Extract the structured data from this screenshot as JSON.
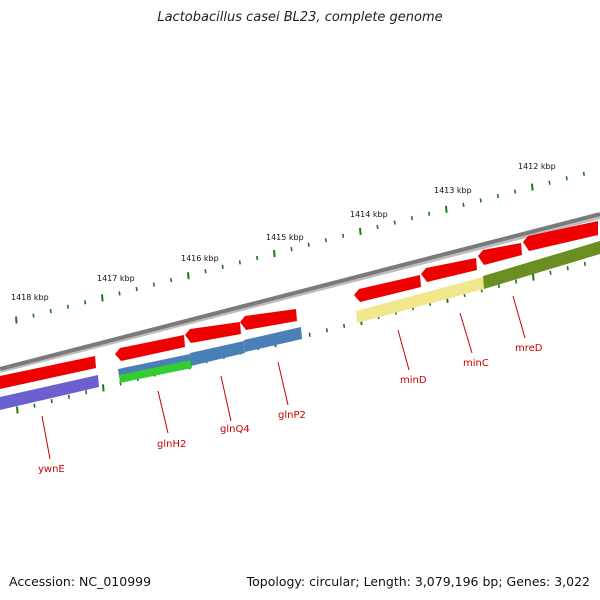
{
  "title": "Lactobacillus casei BL23, complete genome",
  "footer": {
    "accession": "Accession: NC_010999",
    "summary": "Topology: circular; Length: 3,079,196 bp; Genes: 3,022"
  },
  "colors": {
    "backbone": "#7a7a7a",
    "tick": "#1a7a1a",
    "cds": "#ee0000",
    "label": "#cc0000",
    "purple": "#6c5fd0",
    "blue": "#4a80b8",
    "green": "#33cc33",
    "yellow": "#f0e68c",
    "olive": "#6b8e23"
  },
  "ticks": [
    "1418 kbp",
    "1417 kbp",
    "1416 kbp",
    "1415 kbp",
    "1414 kbp",
    "1413 kbp",
    "1412 kbp"
  ],
  "genes": [
    "ywnE",
    "glnH2",
    "glnQ4",
    "glnP2",
    "minD",
    "minC",
    "mreD"
  ]
}
